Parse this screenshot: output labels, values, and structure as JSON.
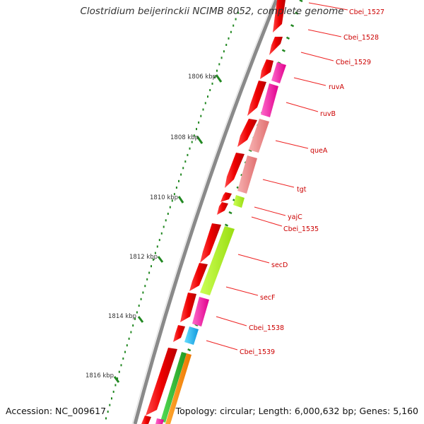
{
  "title": "Clostridium beijerinckii NCIMB 8052, complete genome",
  "accession": "Accession: NC_009617",
  "topology": "Topology: circular; Length: 6,000,632 bp; Genes: 5,160",
  "scale_labels": [
    "1806 kbp",
    "1808 kbp",
    "1810 kbp",
    "1812 kbp",
    "1814 kbp",
    "1816 kbp"
  ],
  "gene_labels": [
    "Cbei_1527",
    "Cbei_1528",
    "Cbei_1529",
    "ruvA",
    "ruvB",
    "queA",
    "tgt",
    "yajC",
    "Cbei_1535",
    "secD",
    "secF",
    "Cbei_1538",
    "Cbei_1539"
  ],
  "colors": {
    "backbone": "#8a8a8a",
    "gene_red": "#ee0000",
    "ruv_magenta": "#ff1fa8",
    "que_pink": "#f08a8a",
    "sec_yellowgreen": "#aaee22",
    "cbei1539_cyan": "#22bbee",
    "green": "#33bb33",
    "orange": "#ff8800",
    "tick_green": "#228822",
    "label_red": "#cc0000"
  }
}
